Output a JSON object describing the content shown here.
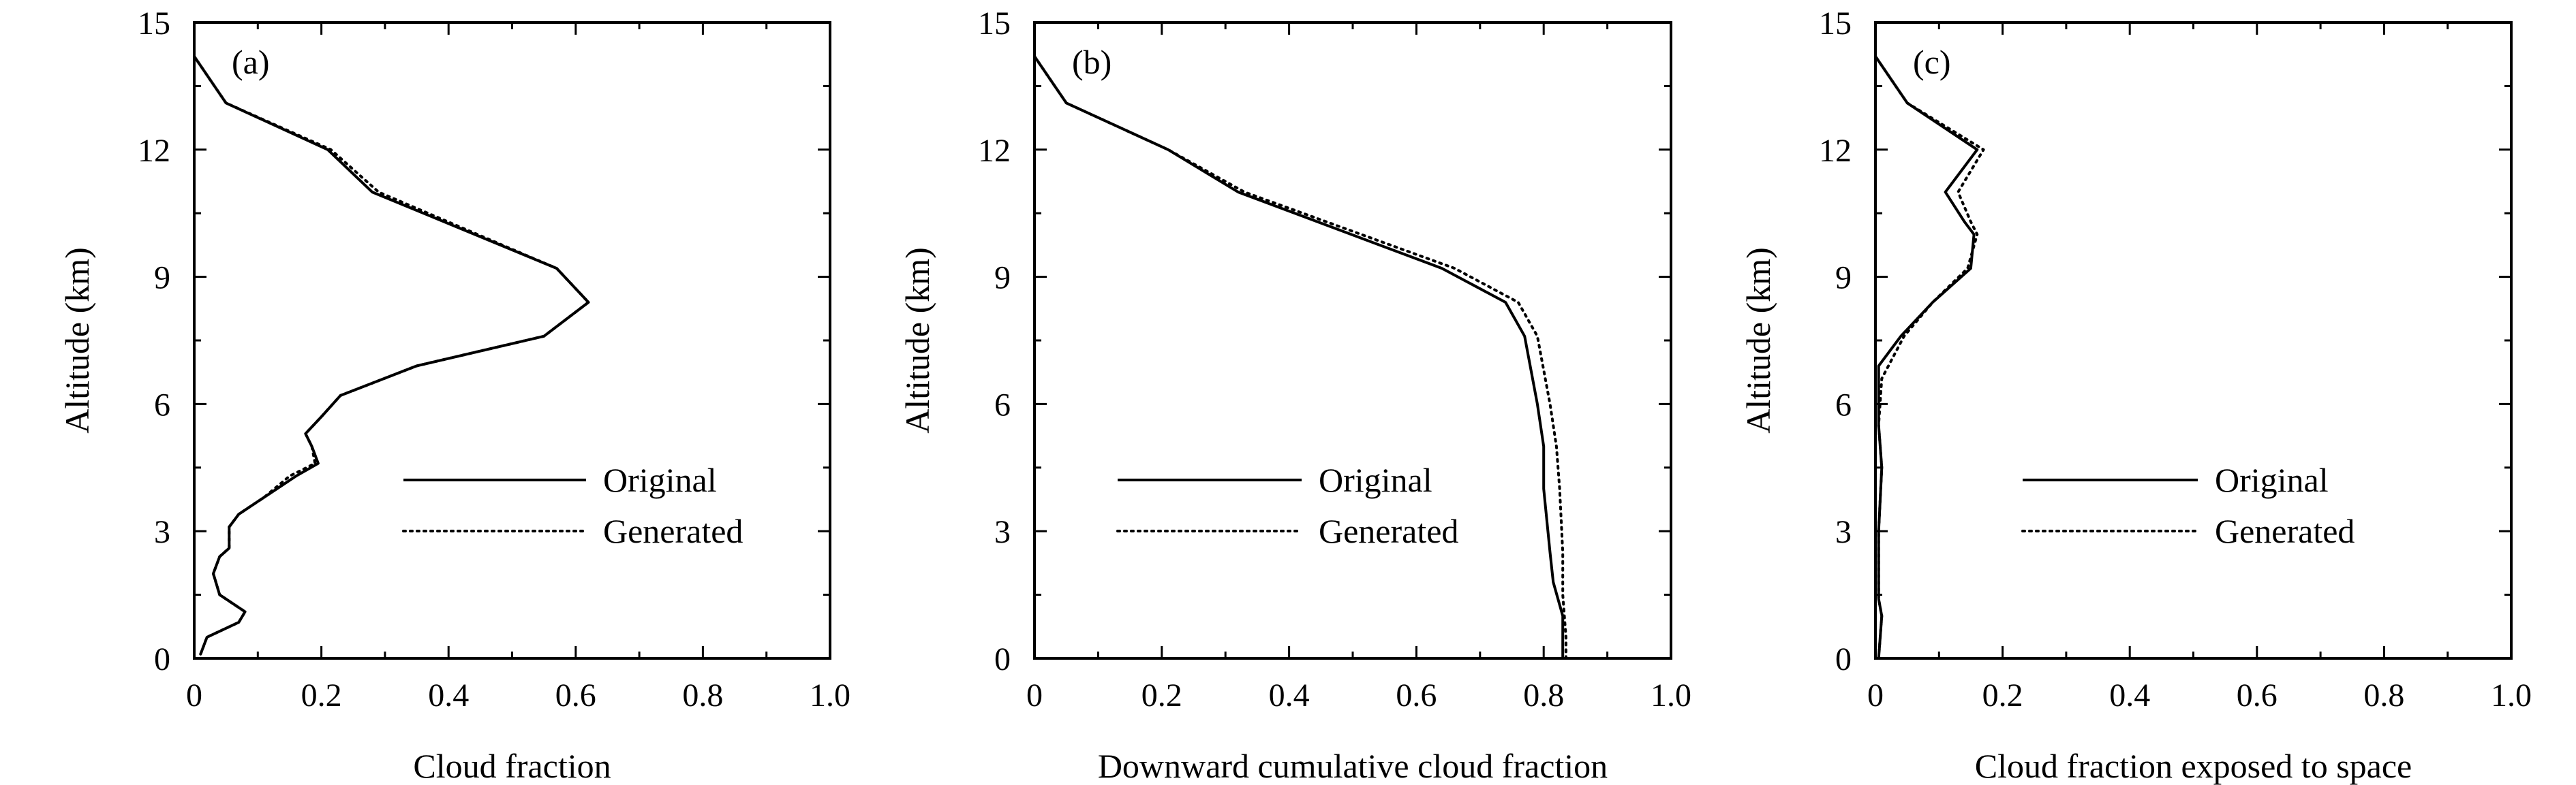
{
  "chart_data": [
    {
      "type": "line",
      "panel_label": "(a)",
      "xlabel": "Cloud fraction",
      "ylabel": "Altitude (km)",
      "xlim": [
        0,
        1.0
      ],
      "ylim": [
        0,
        15
      ],
      "x_ticks": [
        "0",
        "0.2",
        "0.4",
        "0.6",
        "0.8",
        "1.0"
      ],
      "y_ticks": [
        "0",
        "3",
        "6",
        "9",
        "12",
        "15"
      ],
      "legend_position": "center-right",
      "series": [
        {
          "name": "Original",
          "style": "solid",
          "points": [
            [
              0.01,
              0.1
            ],
            [
              0.02,
              0.5
            ],
            [
              0.07,
              0.85
            ],
            [
              0.08,
              1.1
            ],
            [
              0.06,
              1.3
            ],
            [
              0.04,
              1.5
            ],
            [
              0.03,
              2.0
            ],
            [
              0.04,
              2.4
            ],
            [
              0.055,
              2.6
            ],
            [
              0.055,
              3.1
            ],
            [
              0.07,
              3.4
            ],
            [
              0.11,
              3.8
            ],
            [
              0.16,
              4.3
            ],
            [
              0.195,
              4.6
            ],
            [
              0.185,
              5.0
            ],
            [
              0.175,
              5.3
            ],
            [
              0.2,
              5.7
            ],
            [
              0.23,
              6.2
            ],
            [
              0.35,
              6.9
            ],
            [
              0.55,
              7.6
            ],
            [
              0.62,
              8.4
            ],
            [
              0.57,
              9.2
            ],
            [
              0.28,
              11.0
            ],
            [
              0.21,
              12.0
            ],
            [
              0.05,
              13.1
            ],
            [
              0.0,
              14.2
            ]
          ]
        },
        {
          "name": "Generated",
          "style": "dotted",
          "points": [
            [
              0.01,
              0.1
            ],
            [
              0.02,
              0.5
            ],
            [
              0.07,
              0.85
            ],
            [
              0.08,
              1.1
            ],
            [
              0.06,
              1.3
            ],
            [
              0.04,
              1.5
            ],
            [
              0.03,
              2.0
            ],
            [
              0.04,
              2.4
            ],
            [
              0.055,
              2.6
            ],
            [
              0.055,
              3.1
            ],
            [
              0.07,
              3.4
            ],
            [
              0.11,
              3.8
            ],
            [
              0.15,
              4.3
            ],
            [
              0.19,
              4.6
            ],
            [
              0.185,
              5.0
            ],
            [
              0.175,
              5.3
            ],
            [
              0.2,
              5.7
            ],
            [
              0.23,
              6.2
            ],
            [
              0.35,
              6.9
            ],
            [
              0.55,
              7.6
            ],
            [
              0.62,
              8.4
            ],
            [
              0.57,
              9.2
            ],
            [
              0.29,
              11.0
            ],
            [
              0.215,
              12.0
            ],
            [
              0.05,
              13.1
            ],
            [
              0.0,
              14.2
            ]
          ]
        }
      ]
    },
    {
      "type": "line",
      "panel_label": "(b)",
      "xlabel": "Downward cumulative cloud fraction",
      "ylabel": "Altitude (km)",
      "xlim": [
        0,
        1.0
      ],
      "ylim": [
        0,
        15
      ],
      "x_ticks": [
        "0",
        "0.2",
        "0.4",
        "0.6",
        "0.8",
        "1.0"
      ],
      "y_ticks": [
        "0",
        "3",
        "6",
        "9",
        "12",
        "15"
      ],
      "legend_position": "center-right",
      "series": [
        {
          "name": "Original",
          "style": "solid",
          "points": [
            [
              0.0,
              14.2
            ],
            [
              0.05,
              13.1
            ],
            [
              0.21,
              12.0
            ],
            [
              0.32,
              11.0
            ],
            [
              0.64,
              9.2
            ],
            [
              0.74,
              8.4
            ],
            [
              0.77,
              7.6
            ],
            [
              0.79,
              6.0
            ],
            [
              0.8,
              5.0
            ],
            [
              0.8,
              4.0
            ],
            [
              0.81,
              2.5
            ],
            [
              0.815,
              1.8
            ],
            [
              0.83,
              1.0
            ],
            [
              0.83,
              0.0
            ]
          ]
        },
        {
          "name": "Generated",
          "style": "dotted",
          "points": [
            [
              0.0,
              14.2
            ],
            [
              0.05,
              13.1
            ],
            [
              0.21,
              12.0
            ],
            [
              0.33,
              11.0
            ],
            [
              0.66,
              9.2
            ],
            [
              0.76,
              8.4
            ],
            [
              0.79,
              7.6
            ],
            [
              0.81,
              6.0
            ],
            [
              0.82,
              5.0
            ],
            [
              0.825,
              4.0
            ],
            [
              0.83,
              2.5
            ],
            [
              0.83,
              1.5
            ],
            [
              0.835,
              0.5
            ],
            [
              0.835,
              0.0
            ]
          ]
        }
      ]
    },
    {
      "type": "line",
      "panel_label": "(c)",
      "xlabel": "Cloud fraction exposed to space",
      "ylabel": "Altitude (km)",
      "xlim": [
        0,
        1.0
      ],
      "ylim": [
        0,
        15
      ],
      "x_ticks": [
        "0",
        "0.2",
        "0.4",
        "0.6",
        "0.8",
        "1.0"
      ],
      "y_ticks": [
        "0",
        "3",
        "6",
        "9",
        "12",
        "15"
      ],
      "legend_position": "center-right",
      "series": [
        {
          "name": "Original",
          "style": "solid",
          "points": [
            [
              0.005,
              0.0
            ],
            [
              0.01,
              1.0
            ],
            [
              0.005,
              1.4
            ],
            [
              0.005,
              3.0
            ],
            [
              0.01,
              4.5
            ],
            [
              0.005,
              5.5
            ],
            [
              0.005,
              6.9
            ],
            [
              0.04,
              7.6
            ],
            [
              0.09,
              8.4
            ],
            [
              0.15,
              9.2
            ],
            [
              0.155,
              10.0
            ],
            [
              0.14,
              10.3
            ],
            [
              0.11,
              11.0
            ],
            [
              0.16,
              12.0
            ],
            [
              0.05,
              13.1
            ],
            [
              0.0,
              14.2
            ]
          ]
        },
        {
          "name": "Generated",
          "style": "dotted",
          "points": [
            [
              0.005,
              0.0
            ],
            [
              0.01,
              1.0
            ],
            [
              0.005,
              1.4
            ],
            [
              0.005,
              3.0
            ],
            [
              0.01,
              4.5
            ],
            [
              0.005,
              5.5
            ],
            [
              0.01,
              6.6
            ],
            [
              0.045,
              7.6
            ],
            [
              0.09,
              8.4
            ],
            [
              0.145,
              9.2
            ],
            [
              0.16,
              10.0
            ],
            [
              0.15,
              10.3
            ],
            [
              0.13,
              11.0
            ],
            [
              0.17,
              12.0
            ],
            [
              0.05,
              13.1
            ],
            [
              0.0,
              14.2
            ]
          ]
        }
      ]
    }
  ]
}
